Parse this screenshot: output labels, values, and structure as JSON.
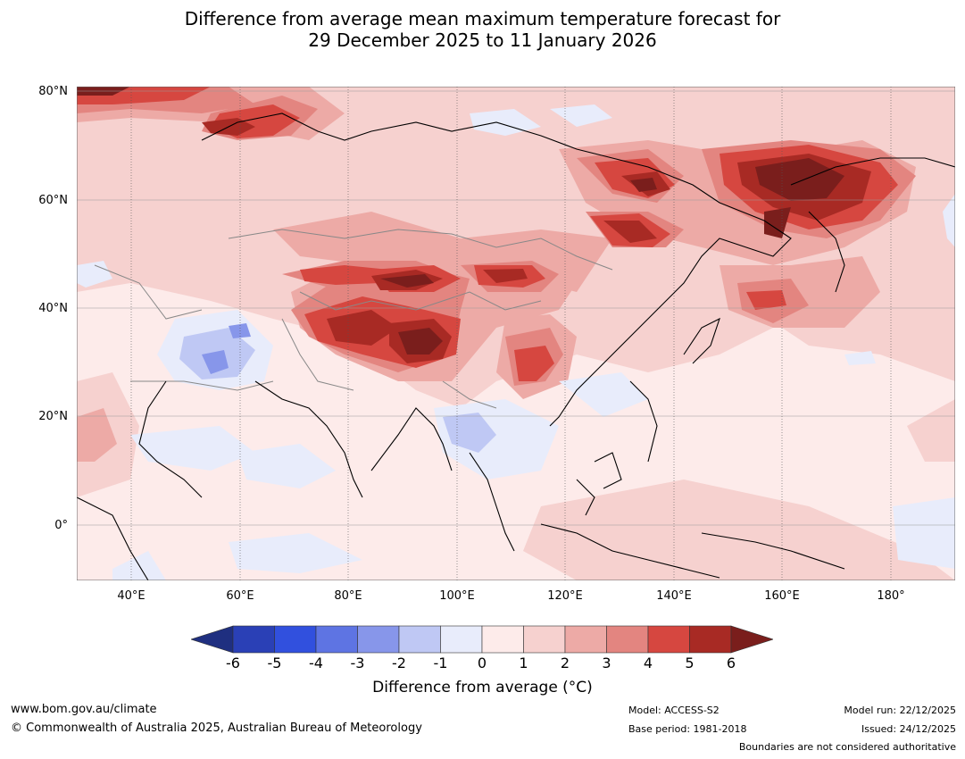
{
  "title": {
    "line1": "Difference from average mean maximum temperature forecast for",
    "line2": "29 December 2025 to 11 January 2026"
  },
  "axes": {
    "latitudes": [
      "80°N",
      "60°N",
      "40°N",
      "20°N",
      "0°"
    ],
    "longitudes": [
      "40°E",
      "60°E",
      "80°E",
      "100°E",
      "120°E",
      "140°E",
      "160°E",
      "180°"
    ]
  },
  "colorbar": {
    "ticks": [
      "-6",
      "-5",
      "-4",
      "-3",
      "-2",
      "-1",
      "0",
      "1",
      "2",
      "3",
      "4",
      "5",
      "6"
    ],
    "colors": [
      "#1f2f80",
      "#2a40b6",
      "#3150de",
      "#5e74e3",
      "#8796ea",
      "#bfc8f4",
      "#e8ecfb",
      "#fdebea",
      "#f6d1cf",
      "#edaaa6",
      "#e38580",
      "#d64740",
      "#a82a24",
      "#7a1e1c"
    ],
    "label": "Difference from average (°C)"
  },
  "footer": {
    "website": "www.bom.gov.au/climate",
    "copyright": "© Commonwealth of Australia 2025, Australian Bureau of Meteorology",
    "model": "Model: ACCESS-S2",
    "base_period": "Base period: 1981-2018",
    "model_run": "Model run: 22/12/2025",
    "issued": "Issued: 24/12/2025",
    "disclaimer": "Boundaries are not considered authoritative"
  }
}
